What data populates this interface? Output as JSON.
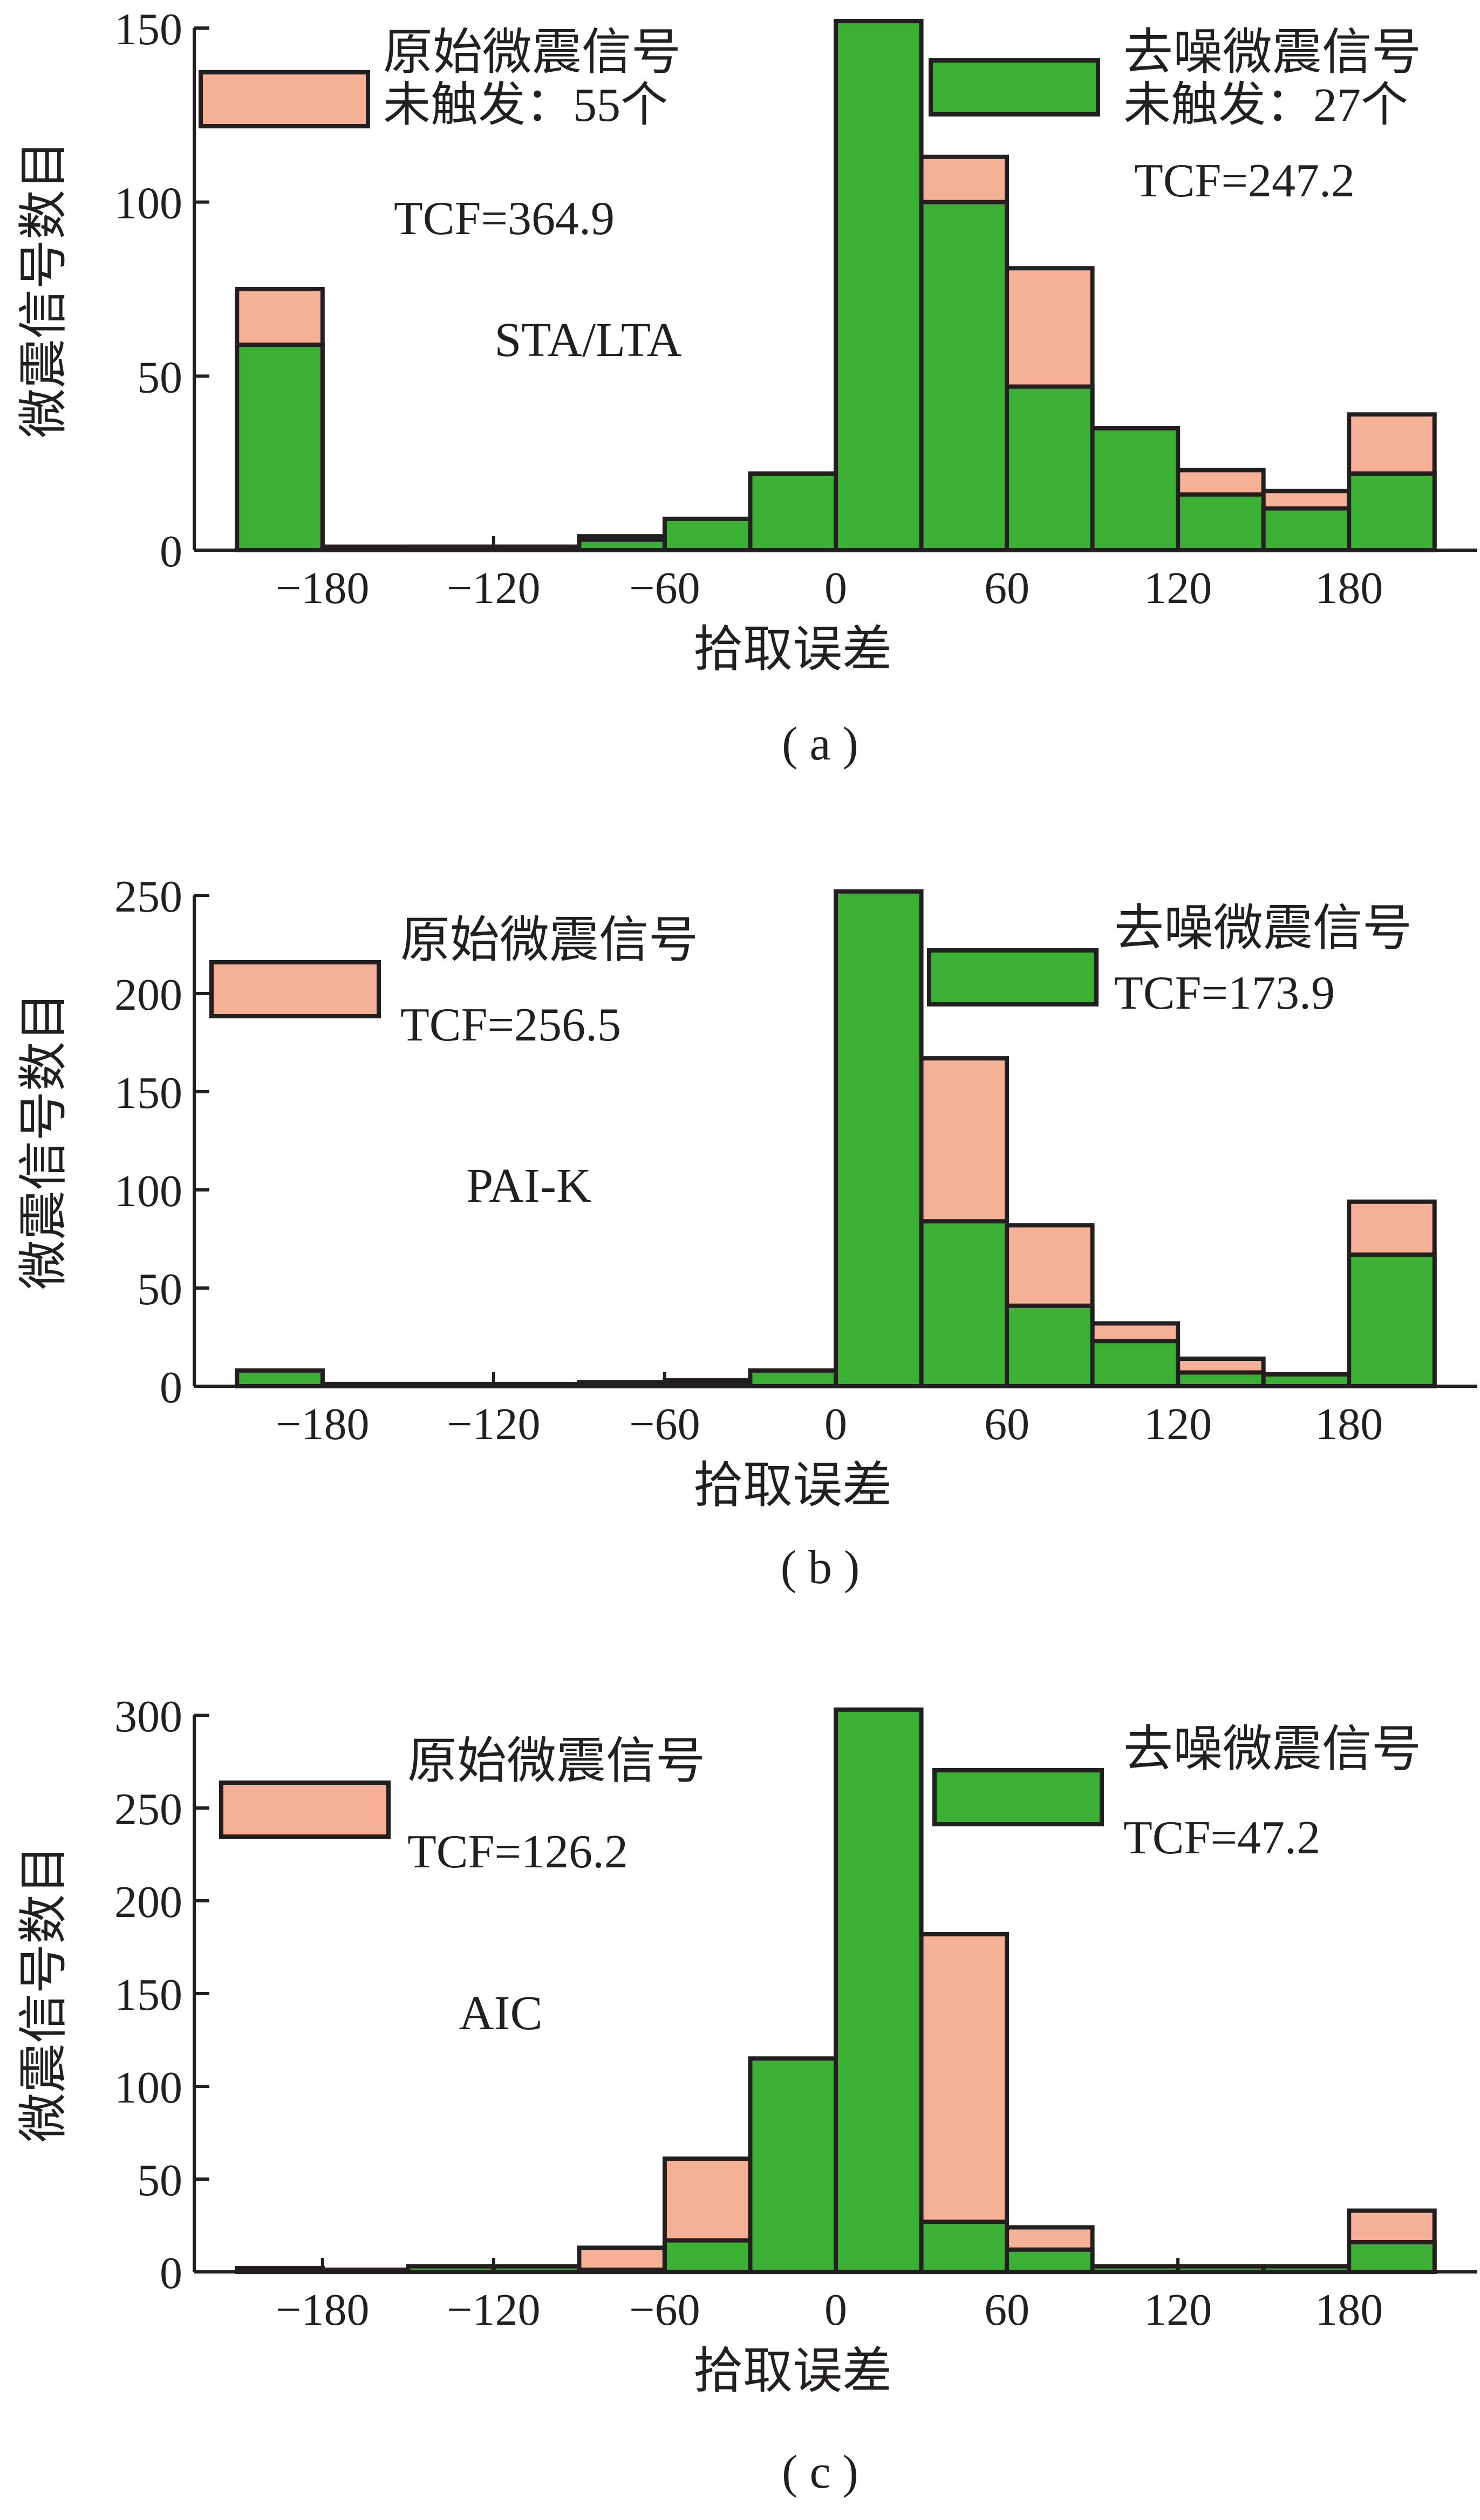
{
  "x_ticks": [
    -180,
    -120,
    -60,
    0,
    60,
    120,
    180
  ],
  "colors": {
    "raw": "#f5b196",
    "denoised": "#3cb035",
    "stroke": "#231f20"
  },
  "chart_data": [
    {
      "type": "bar",
      "panel_label": "( a )",
      "method": "STA/LTA",
      "xlabel": "拾取误差",
      "ylabel": "微震信号数目",
      "ylim": [
        0,
        150
      ],
      "yticks": [
        0,
        50,
        100,
        150
      ],
      "xlim": [
        -225,
        225
      ],
      "bin_width": 30,
      "bin_centers": [
        -195,
        -165,
        -135,
        -105,
        -75,
        -45,
        -15,
        15,
        45,
        75,
        105,
        135,
        165,
        195
      ],
      "series": [
        {
          "name": "原始微震信号",
          "values": [
            75,
            1,
            1,
            1,
            4,
            9,
            22,
            152,
            113,
            81,
            35,
            23,
            17,
            39
          ]
        },
        {
          "name": "去噪微震信号",
          "values": [
            59,
            0.5,
            1,
            1,
            3,
            9,
            22,
            152,
            100,
            47,
            35,
            16,
            12,
            22
          ]
        }
      ],
      "legend": [
        {
          "name": "原始微震信号",
          "notes": [
            "未触发：55个",
            "TCF=364.9"
          ]
        },
        {
          "name": "去噪微震信号",
          "notes": [
            "未触发：27个",
            "TCF=247.2"
          ]
        }
      ]
    },
    {
      "type": "bar",
      "panel_label": "( b )",
      "method": "PAI-K",
      "xlabel": "拾取误差",
      "ylabel": "微震信号数目",
      "ylim": [
        0,
        250
      ],
      "yticks": [
        0,
        50,
        100,
        150,
        200,
        250
      ],
      "xlim": [
        -225,
        225
      ],
      "bin_width": 30,
      "bin_centers": [
        -195,
        -165,
        -135,
        -105,
        -75,
        -45,
        -15,
        15,
        45,
        75,
        105,
        135,
        165,
        195
      ],
      "series": [
        {
          "name": "原始微震信号",
          "values": [
            8,
            1,
            1,
            0,
            2,
            3,
            8,
            252,
            167,
            82,
            32,
            14,
            6,
            94
          ]
        },
        {
          "name": "去噪微震信号",
          "values": [
            8,
            0.5,
            0.5,
            0,
            2,
            2,
            8,
            252,
            84,
            41,
            23,
            7,
            6,
            67
          ]
        }
      ],
      "legend": [
        {
          "name": "原始微震信号",
          "notes": [
            "TCF=256.5"
          ]
        },
        {
          "name": "去噪微震信号",
          "notes": [
            "TCF=173.9"
          ]
        }
      ]
    },
    {
      "type": "bar",
      "panel_label": "( c )",
      "method": "AIC",
      "xlabel": "拾取误差",
      "ylabel": "微震信号数目",
      "ylim": [
        0,
        300
      ],
      "yticks": [
        0,
        50,
        100,
        150,
        200,
        250,
        300
      ],
      "xlim": [
        -225,
        225
      ],
      "bin_width": 30,
      "bin_centers": [
        -195,
        -165,
        -135,
        -105,
        -75,
        -45,
        -15,
        15,
        45,
        75,
        105,
        135,
        165,
        195
      ],
      "series": [
        {
          "name": "原始微震信号",
          "values": [
            2,
            1,
            3,
            3,
            13,
            61,
            115,
            303,
            182,
            24,
            3,
            3,
            3,
            33
          ]
        },
        {
          "name": "去噪微震信号",
          "values": [
            2,
            1,
            3,
            3,
            0,
            17,
            115,
            303,
            27,
            12,
            3,
            3,
            3,
            16
          ]
        }
      ],
      "legend": [
        {
          "name": "原始微震信号",
          "notes": [
            "TCF=126.2"
          ]
        },
        {
          "name": "去噪微震信号",
          "notes": [
            "TCF=47.2"
          ]
        }
      ]
    }
  ]
}
